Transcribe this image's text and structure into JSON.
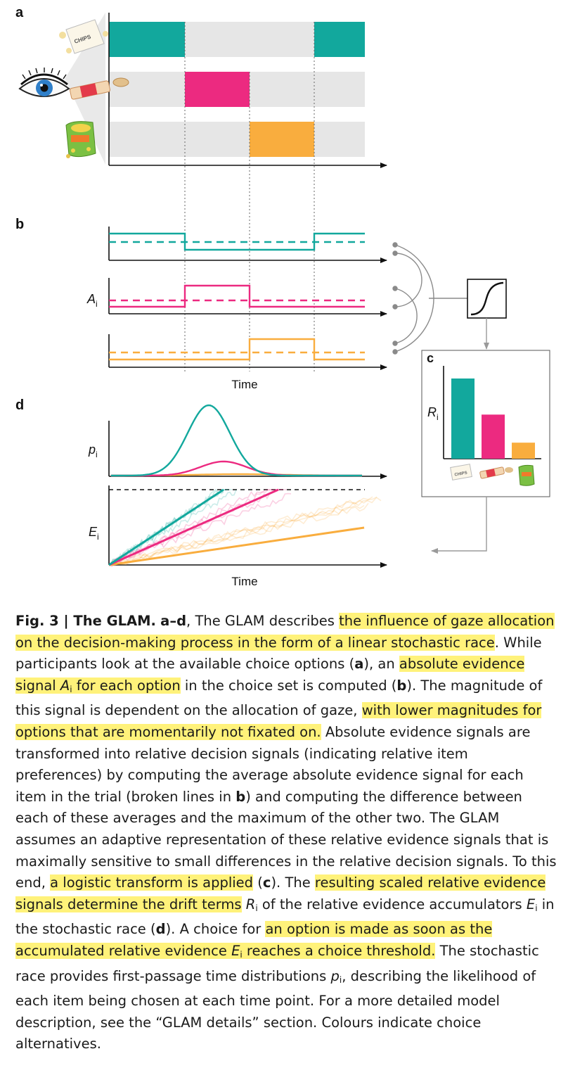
{
  "colors": {
    "teal": "#12a89d",
    "magenta": "#ec2a80",
    "orange": "#f9ad3e",
    "gray_band": "#e6e6e6",
    "highlight": "#fff27a"
  },
  "panels": {
    "a": {
      "label": "a",
      "icons": [
        "eye-icon",
        "chips-bag-icon",
        "candy-bar-icon",
        "snack-bag-icon"
      ],
      "chips_text": "CHIPS",
      "fixation_sequence": [
        "teal",
        "magenta",
        "orange",
        "teal"
      ]
    },
    "b": {
      "label": "b",
      "y_label": "A",
      "y_sub": "i",
      "x_label": "Time"
    },
    "c": {
      "label": "c",
      "y_label": "R",
      "y_sub": "i",
      "bars": [
        {
          "item": "chips",
          "color": "teal",
          "value": 1.0
        },
        {
          "item": "candy",
          "color": "magenta",
          "value": 0.55
        },
        {
          "item": "snack",
          "color": "orange",
          "value": 0.2
        }
      ],
      "chips_text": "CHIPS"
    },
    "d": {
      "label": "d",
      "p_label": "p",
      "p_sub": "i",
      "e_label": "E",
      "e_sub": "i",
      "x_label": "Time"
    }
  },
  "caption": {
    "fig_title": "Fig. 3 | The GLAM.",
    "range": "a–d",
    "t1": ", The GLAM describes ",
    "h1": "the influence of gaze allocation on the decision-making process in the form of a linear stochastic race",
    "t2": ". While participants look at the available choice options (",
    "ref_a": "a",
    "t3": "), an ",
    "h2a": "absolute evidence signal ",
    "h2_var": "A",
    "h2_sub": "i",
    "h2b": " for each option",
    "t4": " in the choice set is computed (",
    "ref_b": "b",
    "t5": "). The magnitude of this signal is dependent on the allocation of gaze, ",
    "h3": "with lower magnitudes for options that are momentarily not fixated on.",
    "t6": " Absolute evidence signals are transformed into relative decision signals (indicating relative item preferences) by computing the average absolute evidence signal for each item in the trial (broken lines in ",
    "ref_b2": "b",
    "t7": ") and computing the difference between each of these averages and the maximum of the other two. The GLAM assumes an adaptive representation of these relative evidence signals that is maximally sensitive to small differences in the relative decision signals. To this end, ",
    "h4": "a logistic transform is applied",
    "t8": " (",
    "ref_c": "c",
    "t9": "). The ",
    "h5": "resulting scaled relative evidence signals determine the drift terms",
    "t10": " ",
    "r_var": "R",
    "r_sub": "i",
    "t11": " of the relative evidence accumulators ",
    "e_var": "E",
    "e_sub": "i",
    "t12": " in the stochastic race (",
    "ref_d": "d",
    "t13": "). A choice for ",
    "h6a": "an option is made as soon as the accumulated relative evidence ",
    "h6_var": "E",
    "h6_sub": "i",
    "h6b": " reaches a choice threshold.",
    "t14": " The stochastic race provides first-passage time distributions ",
    "p_var": "p",
    "p_sub": "i",
    "t15": ", describing the likelihood of each item being chosen at each time point. For a more detailed model description, see the “GLAM details” section. Colours indicate choice alternatives."
  }
}
